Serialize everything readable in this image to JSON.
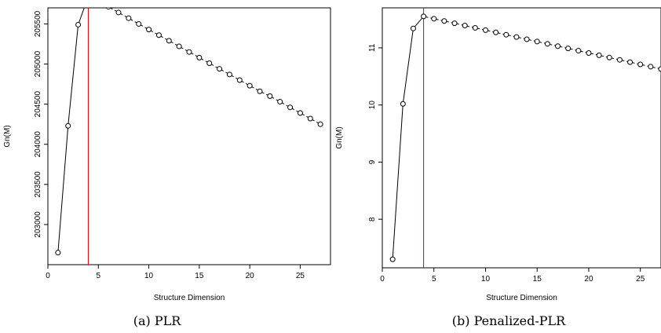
{
  "chart_data": [
    {
      "type": "line",
      "caption": "(a)  PLR",
      "xlabel": "Structure Dimension",
      "ylabel": "Gn(M)",
      "xlim": [
        0,
        28
      ],
      "ylim": [
        202500,
        205700
      ],
      "xticks": [
        0,
        5,
        10,
        15,
        20,
        25
      ],
      "yticks": [
        203000,
        203500,
        204000,
        204500,
        205000,
        205500
      ],
      "vline_x": 4,
      "vline_color": "#dd0000",
      "grid": false,
      "x": [
        1,
        2,
        3,
        4,
        5,
        6,
        7,
        8,
        9,
        10,
        11,
        12,
        13,
        14,
        15,
        16,
        17,
        18,
        19,
        20,
        21,
        22,
        23,
        24,
        25,
        26,
        27
      ],
      "y": [
        202650,
        204230,
        205490,
        205840,
        205780,
        205714,
        205642,
        205571,
        205500,
        205430,
        205360,
        205290,
        205220,
        205150,
        205080,
        205010,
        204940,
        204870,
        204800,
        204730,
        204660,
        204600,
        204530,
        204460,
        204390,
        204320,
        204250
      ]
    },
    {
      "type": "line",
      "caption": "(b)  Penalized-PLR",
      "xlabel": "Structure Dimension",
      "ylabel": "Gn(M)",
      "xlim": [
        0,
        27
      ],
      "ylim": [
        7.15,
        11.7
      ],
      "xticks": [
        0,
        5,
        10,
        15,
        20,
        25
      ],
      "yticks": [
        8,
        9,
        10,
        11
      ],
      "vline_x": 4,
      "vline_color": "#dd0000",
      "grid": false,
      "x": [
        1,
        2,
        3,
        4,
        5,
        6,
        7,
        8,
        9,
        10,
        11,
        12,
        13,
        14,
        15,
        16,
        17,
        18,
        19,
        20,
        21,
        22,
        23,
        24,
        25,
        26,
        27
      ],
      "y": [
        7.3,
        10.02,
        11.34,
        11.55,
        11.51,
        11.47,
        11.43,
        11.39,
        11.35,
        11.31,
        11.27,
        11.23,
        11.19,
        11.15,
        11.11,
        11.07,
        11.03,
        10.99,
        10.95,
        10.91,
        10.87,
        10.83,
        10.79,
        10.75,
        10.71,
        10.67,
        10.63
      ]
    }
  ]
}
